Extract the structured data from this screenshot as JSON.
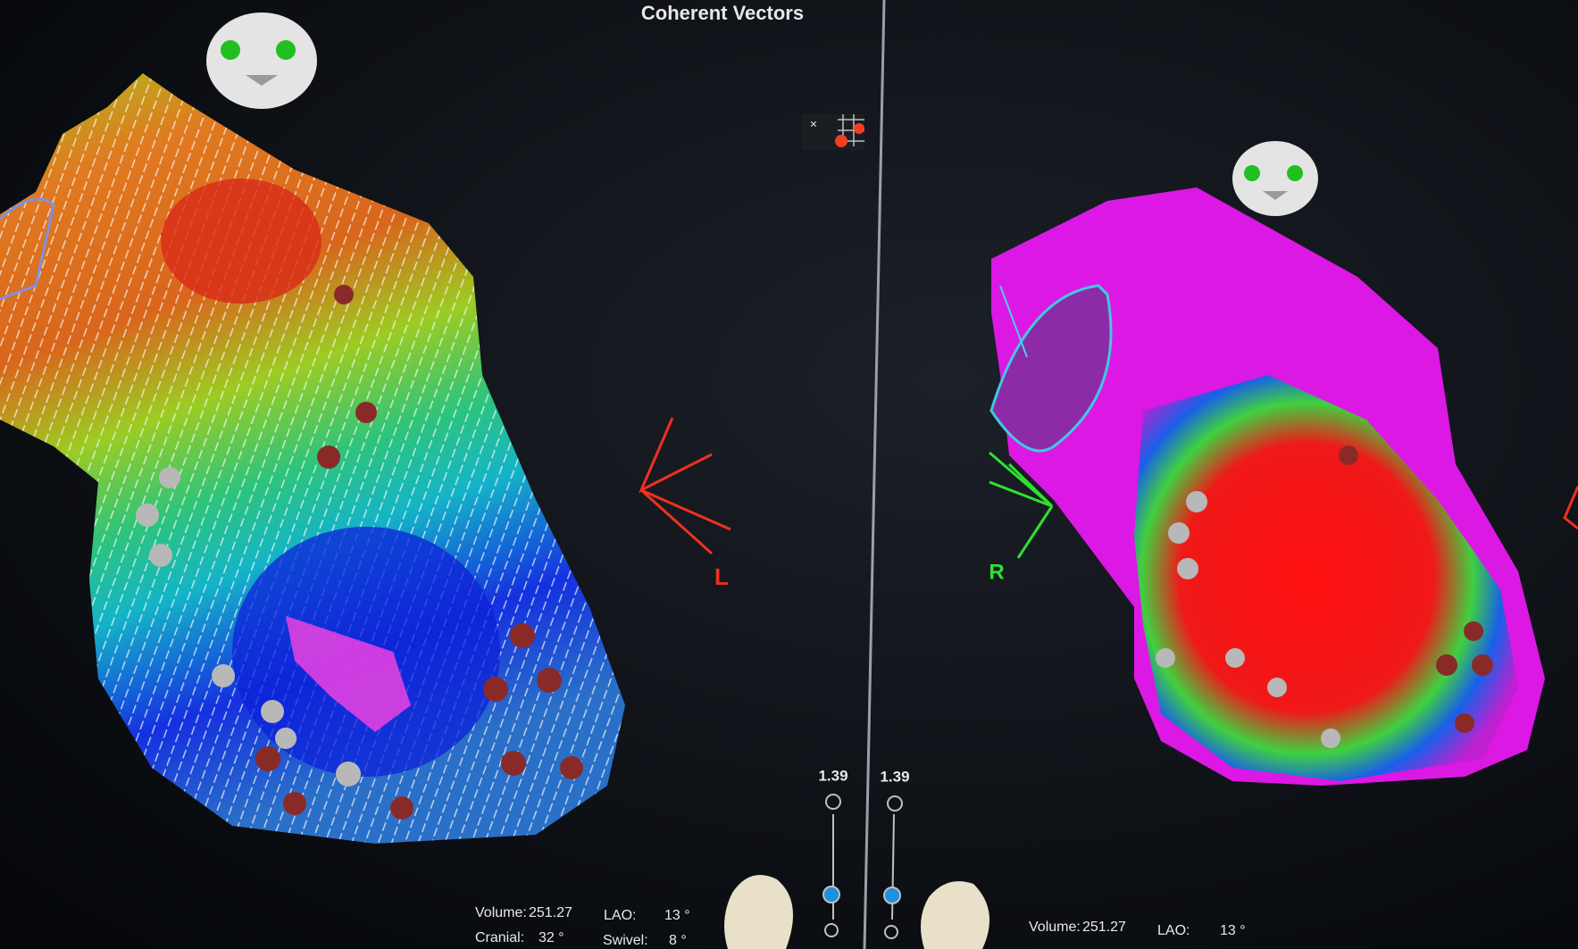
{
  "header": {
    "title": "Coherent Vectors",
    "close": "×"
  },
  "left_panel": {
    "orientation": "L",
    "zoom": "1.39",
    "info": {
      "volume_label": "Volume:",
      "volume": "251.27",
      "lao_label": "LAO:",
      "lao": "13 °",
      "cranial_label": "Cranial:",
      "cranial": "32 °",
      "swivel_label": "Swivel:",
      "swivel": "8 °"
    }
  },
  "right_panel": {
    "orientation": "R",
    "zoom": "1.39",
    "info": {
      "volume_label": "Volume:",
      "volume": "251.27",
      "lao_label": "LAO:",
      "lao": "13 °"
    }
  }
}
